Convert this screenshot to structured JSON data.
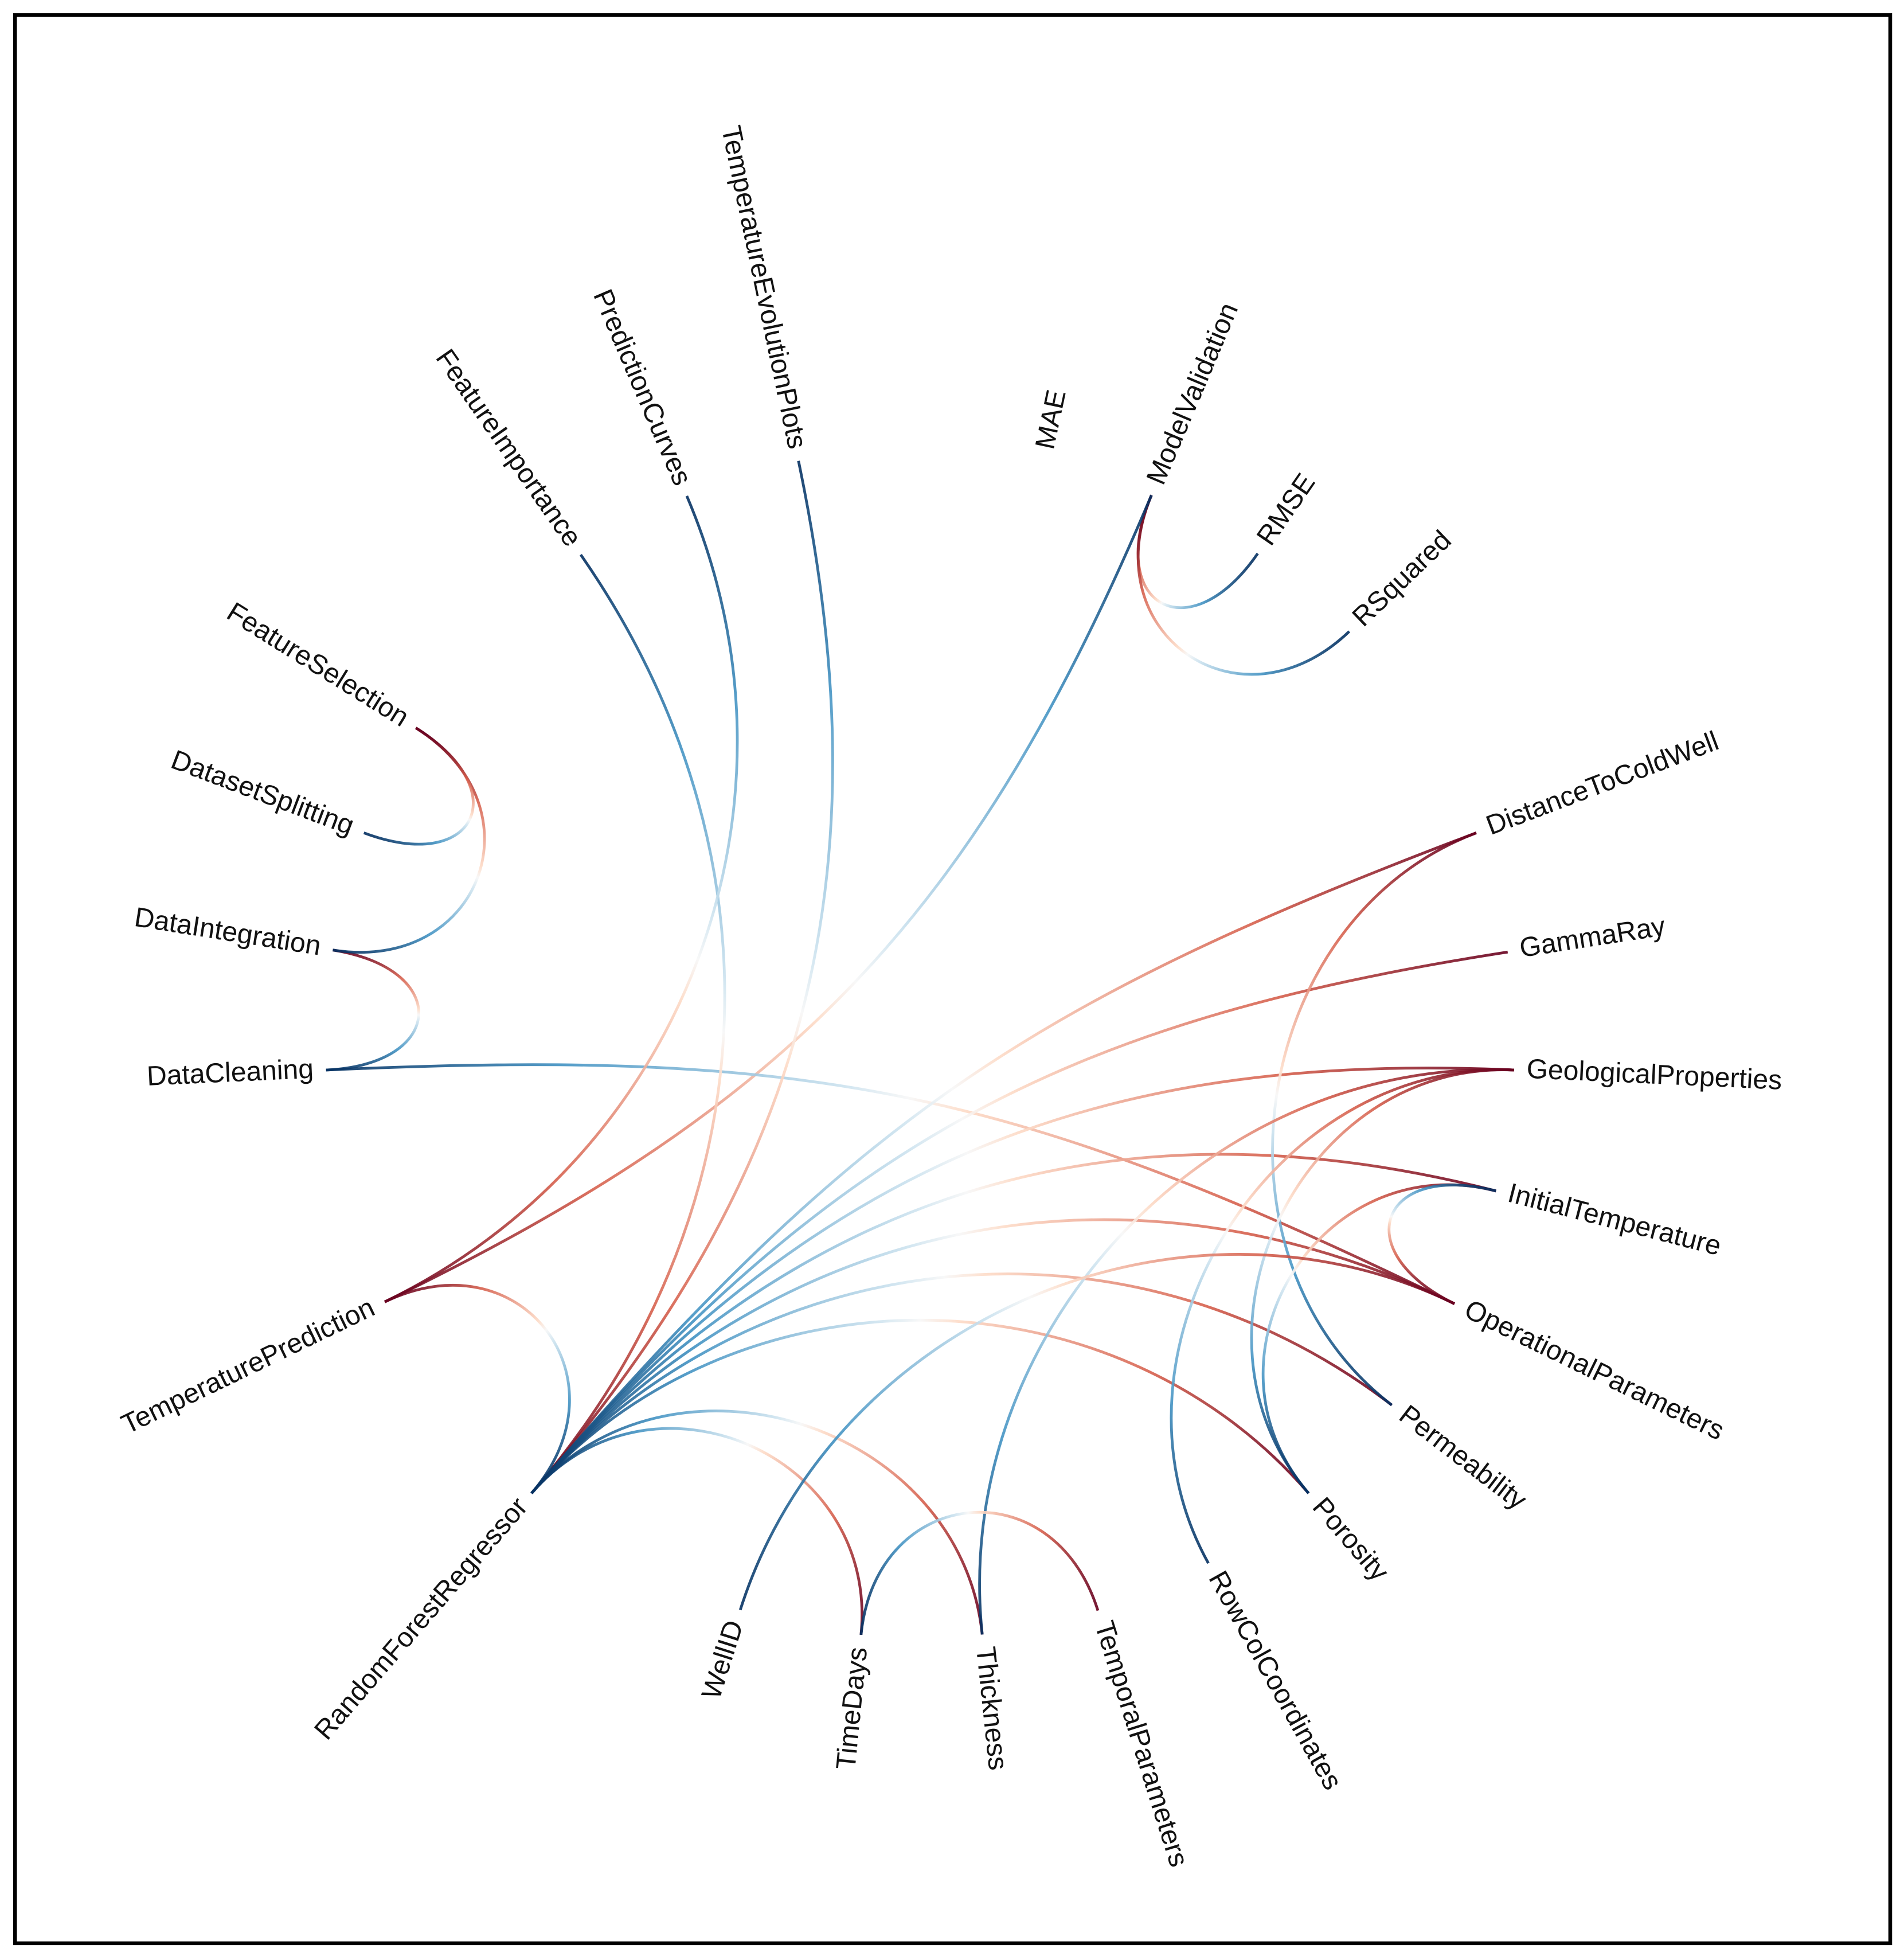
{
  "nodes": [
    {
      "label": "ModelValidation"
    },
    {
      "label": "RMSE"
    },
    {
      "label": "RSquared"
    },
    {
      "label": "DistanceToColdWell"
    },
    {
      "label": "GammaRay"
    },
    {
      "label": "GeologicalProperties"
    },
    {
      "label": "InitialTemperature"
    },
    {
      "label": "OperationalParameters"
    },
    {
      "label": "Permeability"
    },
    {
      "label": "Porosity"
    },
    {
      "label": "RowColCoordinates"
    },
    {
      "label": "TemporalParameters"
    },
    {
      "label": "Thickness"
    },
    {
      "label": "TimeDays"
    },
    {
      "label": "WellID"
    },
    {
      "label": "RandomForestRegressor"
    },
    {
      "label": "TemperaturePrediction"
    },
    {
      "label": "DataCleaning"
    },
    {
      "label": "DataIntegration"
    },
    {
      "label": "DatasetSplitting"
    },
    {
      "label": "FeatureSelection"
    },
    {
      "label": "FeatureImportance"
    },
    {
      "label": "PredictionCurves"
    },
    {
      "label": "TemperatureEvolutionPlots"
    },
    {
      "label": "MAE"
    }
  ],
  "edges": [
    {
      "source": "ModelValidation",
      "target": "RMSE"
    },
    {
      "source": "ModelValidation",
      "target": "RSquared"
    },
    {
      "source": "TemperaturePrediction",
      "target": "ModelValidation"
    },
    {
      "source": "DataIntegration",
      "target": "DataCleaning"
    },
    {
      "source": "FeatureSelection",
      "target": "DataIntegration"
    },
    {
      "source": "FeatureSelection",
      "target": "DatasetSplitting"
    },
    {
      "source": "OperationalParameters",
      "target": "DataCleaning"
    },
    {
      "source": "RandomForestRegressor",
      "target": "FeatureImportance"
    },
    {
      "source": "TemperaturePrediction",
      "target": "PredictionCurves"
    },
    {
      "source": "RandomForestRegressor",
      "target": "TemperatureEvolutionPlots"
    },
    {
      "source": "TemperaturePrediction",
      "target": "RandomForestRegressor"
    },
    {
      "source": "DistanceToColdWell",
      "target": "RandomForestRegressor"
    },
    {
      "source": "GammaRay",
      "target": "RandomForestRegressor"
    },
    {
      "source": "GeologicalProperties",
      "target": "RandomForestRegressor"
    },
    {
      "source": "InitialTemperature",
      "target": "RandomForestRegressor"
    },
    {
      "source": "OperationalParameters",
      "target": "RandomForestRegressor"
    },
    {
      "source": "Permeability",
      "target": "RandomForestRegressor"
    },
    {
      "source": "Porosity",
      "target": "RandomForestRegressor"
    },
    {
      "source": "TimeDays",
      "target": "RandomForestRegressor"
    },
    {
      "source": "Thickness",
      "target": "RandomForestRegressor"
    },
    {
      "source": "DistanceToColdWell",
      "target": "Permeability"
    },
    {
      "source": "GeologicalProperties",
      "target": "Porosity"
    },
    {
      "source": "GeologicalProperties",
      "target": "Thickness"
    },
    {
      "source": "GeologicalProperties",
      "target": "RowColCoordinates"
    },
    {
      "source": "InitialTemperature",
      "target": "Porosity"
    },
    {
      "source": "OperationalParameters",
      "target": "WellID"
    },
    {
      "source": "TemporalParameters",
      "target": "TimeDays"
    },
    {
      "source": "OperationalParameters",
      "target": "InitialTemperature"
    }
  ]
}
